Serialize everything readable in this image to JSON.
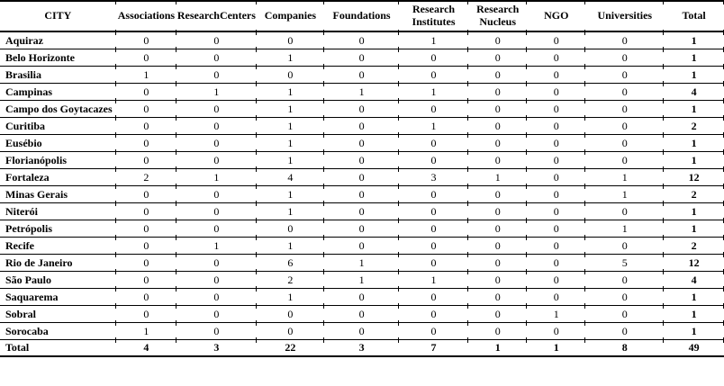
{
  "colors": {
    "background": "#ffffff",
    "text": "#000000",
    "border": "#000000"
  },
  "table": {
    "columns": [
      {
        "key": "city",
        "label": "CITY",
        "width": "16%"
      },
      {
        "key": "associations",
        "label": "Associations",
        "width": "8.4%"
      },
      {
        "key": "research_centers",
        "label": "ResearchCenters",
        "width": "11%"
      },
      {
        "key": "companies",
        "label": "Companies",
        "width": "9.4%"
      },
      {
        "key": "foundations",
        "label": "Foundations",
        "width": "10.3%"
      },
      {
        "key": "research_institutes",
        "label": "Research Institutes",
        "width": "9.6%"
      },
      {
        "key": "research_nucleus",
        "label": "Research Nucleus",
        "width": "8.1%"
      },
      {
        "key": "ngo",
        "label": "NGO",
        "width": "8.1%"
      },
      {
        "key": "universities",
        "label": "Universities",
        "width": "10.8%"
      },
      {
        "key": "total",
        "label": "Total",
        "width": "8.3%"
      }
    ],
    "rows": [
      {
        "city": "Aquiraz",
        "values": [
          0,
          0,
          0,
          0,
          1,
          0,
          0,
          0
        ],
        "total": 1
      },
      {
        "city": "Belo Horizonte",
        "values": [
          0,
          0,
          1,
          0,
          0,
          0,
          0,
          0
        ],
        "total": 1
      },
      {
        "city": "Brasilia",
        "values": [
          1,
          0,
          0,
          0,
          0,
          0,
          0,
          0
        ],
        "total": 1
      },
      {
        "city": "Campinas",
        "values": [
          0,
          1,
          1,
          1,
          1,
          0,
          0,
          0
        ],
        "total": 4
      },
      {
        "city": "Campo dos Goytacazes",
        "values": [
          0,
          0,
          1,
          0,
          0,
          0,
          0,
          0
        ],
        "total": 1
      },
      {
        "city": "Curitiba",
        "values": [
          0,
          0,
          1,
          0,
          1,
          0,
          0,
          0
        ],
        "total": 2
      },
      {
        "city": "Eusébio",
        "values": [
          0,
          0,
          1,
          0,
          0,
          0,
          0,
          0
        ],
        "total": 1
      },
      {
        "city": "Florianópolis",
        "values": [
          0,
          0,
          1,
          0,
          0,
          0,
          0,
          0
        ],
        "total": 1
      },
      {
        "city": "Fortaleza",
        "values": [
          2,
          1,
          4,
          0,
          3,
          1,
          0,
          1
        ],
        "total": 12
      },
      {
        "city": "Minas Gerais",
        "values": [
          0,
          0,
          1,
          0,
          0,
          0,
          0,
          1
        ],
        "total": 2
      },
      {
        "city": "Niterói",
        "values": [
          0,
          0,
          1,
          0,
          0,
          0,
          0,
          0
        ],
        "total": 1
      },
      {
        "city": "Petrópolis",
        "values": [
          0,
          0,
          0,
          0,
          0,
          0,
          0,
          1
        ],
        "total": 1
      },
      {
        "city": "Recife",
        "values": [
          0,
          1,
          1,
          0,
          0,
          0,
          0,
          0
        ],
        "total": 2
      },
      {
        "city": "Rio de Janeiro",
        "values": [
          0,
          0,
          6,
          1,
          0,
          0,
          0,
          5
        ],
        "total": 12
      },
      {
        "city": "São Paulo",
        "values": [
          0,
          0,
          2,
          1,
          1,
          0,
          0,
          0
        ],
        "total": 4
      },
      {
        "city": "Saquarema",
        "values": [
          0,
          0,
          1,
          0,
          0,
          0,
          0,
          0
        ],
        "total": 1
      },
      {
        "city": "Sobral",
        "values": [
          0,
          0,
          0,
          0,
          0,
          0,
          1,
          0
        ],
        "total": 1
      },
      {
        "city": "Sorocaba",
        "values": [
          1,
          0,
          0,
          0,
          0,
          0,
          0,
          0
        ],
        "total": 1
      }
    ],
    "footer": {
      "city": "Total",
      "values": [
        4,
        3,
        22,
        3,
        7,
        1,
        1,
        8
      ],
      "total": 49
    }
  },
  "chart_data": {
    "type": "table",
    "title": "",
    "columns": [
      "CITY",
      "Associations",
      "ResearchCenters",
      "Companies",
      "Foundations",
      "Research Institutes",
      "Research Nucleus",
      "NGO",
      "Universities",
      "Total"
    ],
    "rows": [
      [
        "Aquiraz",
        0,
        0,
        0,
        0,
        1,
        0,
        0,
        0,
        1
      ],
      [
        "Belo Horizonte",
        0,
        0,
        1,
        0,
        0,
        0,
        0,
        0,
        1
      ],
      [
        "Brasilia",
        1,
        0,
        0,
        0,
        0,
        0,
        0,
        0,
        1
      ],
      [
        "Campinas",
        0,
        1,
        1,
        1,
        1,
        0,
        0,
        0,
        4
      ],
      [
        "Campo dos Goytacazes",
        0,
        0,
        1,
        0,
        0,
        0,
        0,
        0,
        1
      ],
      [
        "Curitiba",
        0,
        0,
        1,
        0,
        1,
        0,
        0,
        0,
        2
      ],
      [
        "Eusébio",
        0,
        0,
        1,
        0,
        0,
        0,
        0,
        0,
        1
      ],
      [
        "Florianópolis",
        0,
        0,
        1,
        0,
        0,
        0,
        0,
        0,
        1
      ],
      [
        "Fortaleza",
        2,
        1,
        4,
        0,
        3,
        1,
        0,
        1,
        12
      ],
      [
        "Minas Gerais",
        0,
        0,
        1,
        0,
        0,
        0,
        0,
        1,
        2
      ],
      [
        "Niterói",
        0,
        0,
        1,
        0,
        0,
        0,
        0,
        0,
        1
      ],
      [
        "Petrópolis",
        0,
        0,
        0,
        0,
        0,
        0,
        0,
        1,
        1
      ],
      [
        "Recife",
        0,
        1,
        1,
        0,
        0,
        0,
        0,
        0,
        2
      ],
      [
        "Rio de Janeiro",
        0,
        0,
        6,
        1,
        0,
        0,
        0,
        5,
        12
      ],
      [
        "São Paulo",
        0,
        0,
        2,
        1,
        1,
        0,
        0,
        0,
        4
      ],
      [
        "Saquarema",
        0,
        0,
        1,
        0,
        0,
        0,
        0,
        0,
        1
      ],
      [
        "Sobral",
        0,
        0,
        0,
        0,
        0,
        0,
        1,
        0,
        1
      ],
      [
        "Sorocaba",
        1,
        0,
        0,
        0,
        0,
        0,
        0,
        0,
        1
      ],
      [
        "Total",
        4,
        3,
        22,
        3,
        7,
        1,
        1,
        8,
        49
      ]
    ]
  }
}
